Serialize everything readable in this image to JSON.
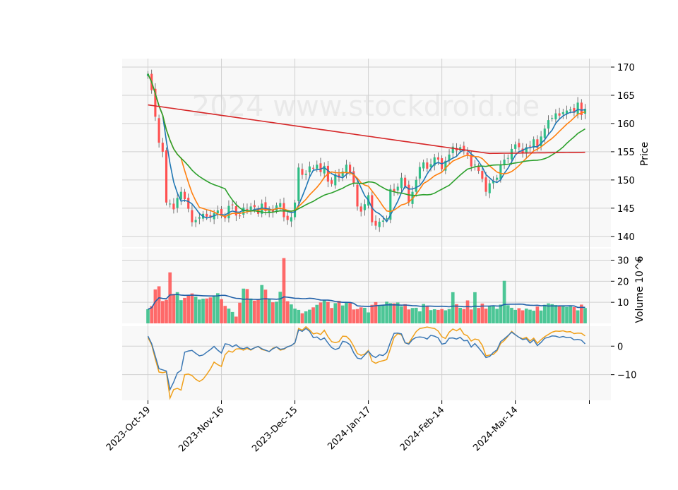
{
  "chart_data": {
    "type": "candlestick",
    "watermark": "2024 www.stockdroid.de",
    "x_tick_labels": [
      "2023-Oct-19",
      "2023-Nov-16",
      "2023-Dec-15",
      "2024-Jan-17",
      "2024-Feb-14",
      "2024-Mar-14"
    ],
    "x_tick_index": [
      0,
      20,
      40,
      60,
      80,
      100
    ],
    "n_bars": 120,
    "price_panel": {
      "ylabel": "Price",
      "yticks": [
        140,
        145,
        150,
        155,
        160,
        165,
        170
      ],
      "ylim": [
        138.1,
        171.5
      ],
      "candles_close": [
        168.8,
        165.9,
        161.2,
        156.6,
        155.0,
        146.0,
        145.8,
        144.8,
        146.8,
        147.9,
        146.6,
        144.9,
        142.5,
        142.9,
        143.4,
        144.0,
        143.5,
        143.3,
        144.1,
        144.6,
        143.7,
        143.2,
        145.4,
        145.6,
        143.7,
        143.6,
        145.1,
        144.7,
        145.3,
        145.2,
        144.0,
        145.8,
        144.5,
        144.7,
        144.3,
        145.5,
        145.9,
        143.4,
        142.9,
        143.4,
        146.0,
        152.2,
        150.9,
        151.1,
        152.4,
        152.0,
        152.7,
        151.4,
        152.5,
        149.7,
        149.3,
        151.0,
        150.4,
        151.5,
        152.7,
        151.3,
        149.4,
        145.3,
        144.4,
        145.7,
        147.3,
        142.5,
        141.9,
        142.6,
        142.8,
        143.2,
        148.4,
        147.9,
        148.8,
        150.4,
        148.9,
        146.0,
        147.9,
        150.0,
        152.3,
        153.1,
        152.0,
        152.8,
        154.0,
        153.6,
        151.9,
        153.4,
        154.5,
        155.9,
        155.2,
        155.8,
        155.1,
        154.5,
        152.4,
        152.7,
        151.6,
        150.2,
        147.9,
        149.4,
        149.8,
        150.4,
        152.7,
        153.6,
        153.9,
        155.5,
        156.3,
        155.8,
        154.7,
        155.8,
        156.0,
        157.2,
        155.7,
        157.7,
        159.1,
        160.6,
        161.0,
        161.8,
        161.4,
        162.0,
        162.3,
        162.5,
        161.9,
        163.7,
        161.5,
        162.6
      ],
      "sma_blue": {
        "start": 165.7,
        "trough": 144.8,
        "end": 161.1
      },
      "sma_orange": {
        "start": 166.3,
        "trough": 144.1,
        "end": 158.2
      },
      "sma_green": {
        "start": 164.5,
        "trough": 146.0,
        "end": 154.4
      },
      "sma_red": {
        "start": 163.3,
        "trough": 154.7,
        "end": 154.9
      }
    },
    "volume_panel": {
      "ylabel": "Volume  10^6",
      "yticks": [
        10,
        20,
        30
      ],
      "ylim": [
        0,
        31.5
      ],
      "volumes": [
        6.7,
        8.2,
        16.1,
        17.6,
        10.6,
        11.2,
        24.2,
        14.0,
        14.8,
        11.0,
        12.1,
        13.5,
        14.2,
        12.7,
        11.3,
        11.7,
        11.8,
        12.3,
        13.1,
        14.3,
        11.5,
        8.3,
        7.0,
        5.4,
        3.2,
        9.8,
        16.5,
        16.3,
        11.8,
        10.8,
        11.2,
        18.2,
        16.0,
        11.6,
        10.0,
        10.3,
        15.0,
        31.0,
        10.5,
        9.0,
        7.0,
        6.4,
        4.8,
        5.7,
        6.5,
        7.6,
        8.8,
        9.9,
        10.9,
        10.2,
        7.3,
        9.6,
        10.7,
        8.5,
        9.9,
        9.7,
        6.6,
        6.8,
        7.6,
        7.4,
        5.2,
        8.8,
        10.1,
        8.3,
        8.7,
        10.3,
        9.6,
        9.5,
        9.9,
        8.1,
        9.1,
        6.6,
        7.3,
        7.4,
        5.7,
        9.2,
        8.3,
        6.3,
        6.7,
        6.4,
        6.8,
        6.2,
        6.8,
        14.8,
        9.1,
        7.4,
        6.8,
        10.9,
        6.6,
        14.8,
        7.3,
        9.4,
        7.0,
        8.4,
        8.3,
        6.9,
        8.9,
        20.2,
        8.6,
        7.4,
        6.4,
        7.2,
        6.2,
        7.0,
        6.5,
        6.0,
        8.0,
        6.1,
        8.8,
        9.5,
        9.1,
        8.7,
        8.1,
        8.5,
        7.8,
        8.0,
        7.7,
        6.2,
        8.9,
        7.3
      ],
      "volume_ma": {
        "start": 7.8,
        "plateau": 10.5,
        "end": 9.0
      }
    },
    "indicator_panel": {
      "yticks": [
        -10,
        0
      ],
      "ylim": [
        -19.0,
        7.0
      ],
      "blue_line": [
        3.5,
        0.9,
        -3.5,
        -7.9,
        -8.3,
        -8.7,
        -15.2,
        -12.6,
        -9.4,
        -8.5,
        -2.1,
        -1.7,
        -1.5,
        -2.5,
        -3.4,
        -3.1,
        -2.1,
        -1.2,
        -0.1,
        -1.4,
        -2.4,
        0.8,
        0.6,
        -0.2,
        0.5,
        -0.6,
        -0.9,
        -0.4,
        -1.2,
        -0.6,
        -0.1,
        -0.9,
        -1.4,
        -1.9,
        -0.9,
        -0.3,
        -1.1,
        -0.9,
        -0.2,
        0.2,
        1.2,
        5.7,
        5.2,
        6.2,
        5.2,
        3.0,
        3.2,
        2.2,
        2.9,
        1.1,
        -0.5,
        -1.2,
        -0.7,
        1.7,
        1.4,
        0.5,
        -2.3,
        -4.2,
        -4.5,
        -3.1,
        -1.8,
        -3.3,
        -4.0,
        -3.0,
        -3.3,
        -2.2,
        1.4,
        4.5,
        4.6,
        4.3,
        1.2,
        0.7,
        2.3,
        3.1,
        3.2,
        3.1,
        2.5,
        3.8,
        3.5,
        2.9,
        0.7,
        1.0,
        2.8,
        2.9,
        2.5,
        3.1,
        1.9,
        2.0,
        -0.3,
        0.9,
        -0.6,
        -2.2,
        -4.0,
        -3.6,
        -2.2,
        -1.3,
        1.6,
        2.6,
        3.7,
        4.9,
        4.0,
        3.1,
        2.3,
        2.6,
        1.1,
        2.2,
        0.2,
        1.3,
        2.8,
        3.1,
        3.6,
        3.5,
        3.1,
        3.4,
        3.0,
        3.1,
        2.2,
        2.4,
        2.1,
        0.8
      ],
      "orange_line": [
        3.0,
        0.5,
        -4.5,
        -9.1,
        -9.3,
        -9.0,
        -18.2,
        -15.2,
        -14.8,
        -15.4,
        -10.0,
        -9.8,
        -10.3,
        -11.6,
        -12.4,
        -11.6,
        -9.9,
        -8.0,
        -5.6,
        -6.5,
        -7.1,
        -3.0,
        -1.7,
        -2.1,
        -1.0,
        -0.9,
        -1.4,
        -0.8,
        -1.4,
        -0.6,
        -0.1,
        -1.2,
        -1.5,
        -1.9,
        -0.7,
        -0.3,
        -1.4,
        -1.1,
        -0.2,
        0.2,
        1.1,
        6.2,
        5.6,
        6.8,
        5.7,
        4.3,
        4.6,
        4.1,
        5.6,
        3.3,
        1.6,
        1.2,
        1.6,
        3.5,
        3.4,
        2.2,
        0.0,
        -2.6,
        -3.2,
        -2.8,
        -1.5,
        -5.3,
        -6.0,
        -5.4,
        -5.1,
        -4.7,
        -0.9,
        3.1,
        4.4,
        4.0,
        1.1,
        1.0,
        3.1,
        5.1,
        6.2,
        6.4,
        6.7,
        6.4,
        6.2,
        5.3,
        3.3,
        2.7,
        4.9,
        6.0,
        5.4,
        6.2,
        4.2,
        3.6,
        1.8,
        2.5,
        2.2,
        0.3,
        -3.4,
        -3.1,
        -2.9,
        -1.7,
        0.9,
        2.0,
        3.5,
        5.2,
        4.0,
        3.1,
        2.6,
        3.1,
        1.8,
        2.8,
        1.0,
        2.3,
        3.3,
        4.1,
        4.9,
        5.3,
        5.2,
        5.4,
        5.0,
        5.1,
        4.4,
        4.6,
        4.5,
        3.6
      ]
    },
    "colors": {
      "up": "#2ebd85",
      "down": "#ff5050",
      "sma_blue": "#1f77b4",
      "sma_orange": "#ff7f0e",
      "sma_green": "#2ca02c",
      "sma_red": "#d62728",
      "volume_ma": "#1f5fa8",
      "ind_blue": "#3b78b5",
      "ind_orange": "#f0a01a",
      "panel_bg": "#f8f8f8",
      "grid": "#d0d0d0"
    }
  }
}
